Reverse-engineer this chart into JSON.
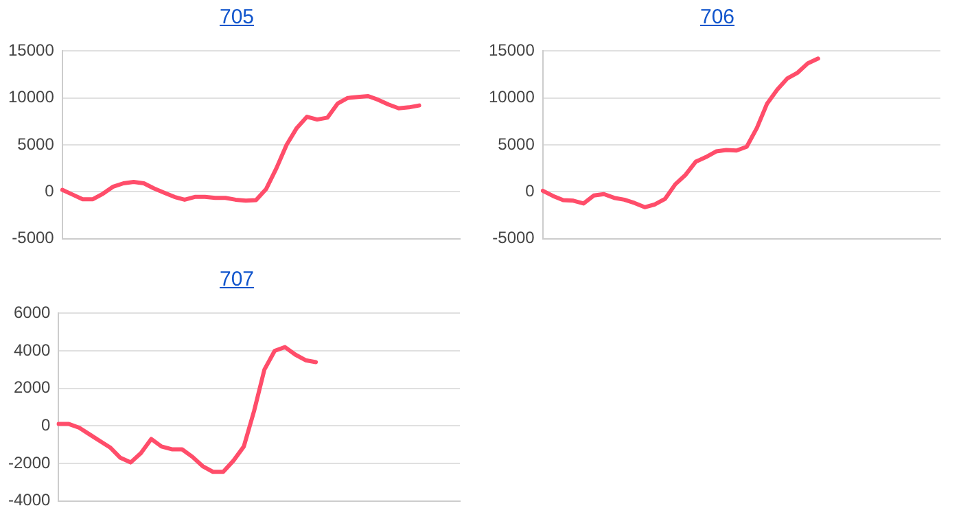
{
  "chart_data": [
    {
      "type": "line",
      "title": "705",
      "categories": [
        null,
        null,
        null,
        null,
        null,
        null,
        null,
        null,
        null,
        null,
        null,
        null,
        null,
        null,
        null,
        null,
        null,
        null,
        null,
        null,
        null,
        null,
        null,
        null,
        null,
        null,
        null,
        null,
        null,
        null,
        null,
        null,
        null,
        null,
        null,
        null,
        null,
        null,
        null,
        null
      ],
      "values": [
        200,
        -300,
        -800,
        -800,
        -200,
        550,
        900,
        1050,
        900,
        350,
        -100,
        -550,
        -850,
        -550,
        -550,
        -650,
        -650,
        -850,
        -950,
        -900,
        300,
        2500,
        5000,
        6800,
        8000,
        7700,
        7900,
        9400,
        10000,
        10100,
        10200,
        9800,
        9300,
        8900,
        9000,
        9200,
        null,
        null,
        null,
        null
      ],
      "color": "#ff4d6a",
      "ylim": [
        -5000,
        15000
      ],
      "yticks": [
        -5000,
        0,
        5000,
        10000,
        15000
      ],
      "grid": "y",
      "tick_labels": "y"
    },
    {
      "type": "line",
      "title": "706",
      "categories": [
        null,
        null,
        null,
        null,
        null,
        null,
        null,
        null,
        null,
        null,
        null,
        null,
        null,
        null,
        null,
        null,
        null,
        null,
        null,
        null,
        null,
        null,
        null,
        null,
        null,
        null,
        null,
        null,
        null,
        null,
        null,
        null,
        null,
        null,
        null,
        null,
        null,
        null,
        null,
        null
      ],
      "values": [
        100,
        -450,
        -900,
        -950,
        -1250,
        -400,
        -250,
        -650,
        -850,
        -1200,
        -1650,
        -1350,
        -750,
        800,
        1800,
        3200,
        3700,
        4300,
        4450,
        4400,
        4800,
        6800,
        9400,
        10900,
        12100,
        12700,
        13700,
        14200,
        null,
        null,
        null,
        null,
        null,
        null,
        null,
        null,
        null,
        null,
        null,
        null
      ],
      "color": "#ff4d6a",
      "ylim": [
        -5000,
        15000
      ],
      "yticks": [
        -5000,
        0,
        5000,
        10000,
        15000
      ],
      "grid": "y",
      "tick_labels": "y"
    },
    {
      "type": "line",
      "title": "707",
      "categories": [
        null,
        null,
        null,
        null,
        null,
        null,
        null,
        null,
        null,
        null,
        null,
        null,
        null,
        null,
        null,
        null,
        null,
        null,
        null,
        null,
        null,
        null,
        null,
        null,
        null,
        null,
        null,
        null,
        null,
        null,
        null,
        null,
        null,
        null,
        null,
        null,
        null,
        null,
        null,
        null
      ],
      "values": [
        100,
        100,
        -100,
        -450,
        -800,
        -1150,
        -1700,
        -1950,
        -1450,
        -700,
        -1100,
        -1250,
        -1250,
        -1650,
        -2150,
        -2450,
        -2450,
        -1850,
        -1100,
        800,
        3000,
        4000,
        4200,
        3800,
        3500,
        3400,
        null,
        null,
        null,
        null,
        null,
        null,
        null,
        null,
        null,
        null,
        null,
        null,
        null,
        null
      ],
      "color": "#ff4d6a",
      "ylim": [
        -4000,
        6000
      ],
      "yticks": [
        -4000,
        -2000,
        0,
        2000,
        4000,
        6000
      ],
      "grid": "y",
      "tick_labels": "y"
    }
  ]
}
